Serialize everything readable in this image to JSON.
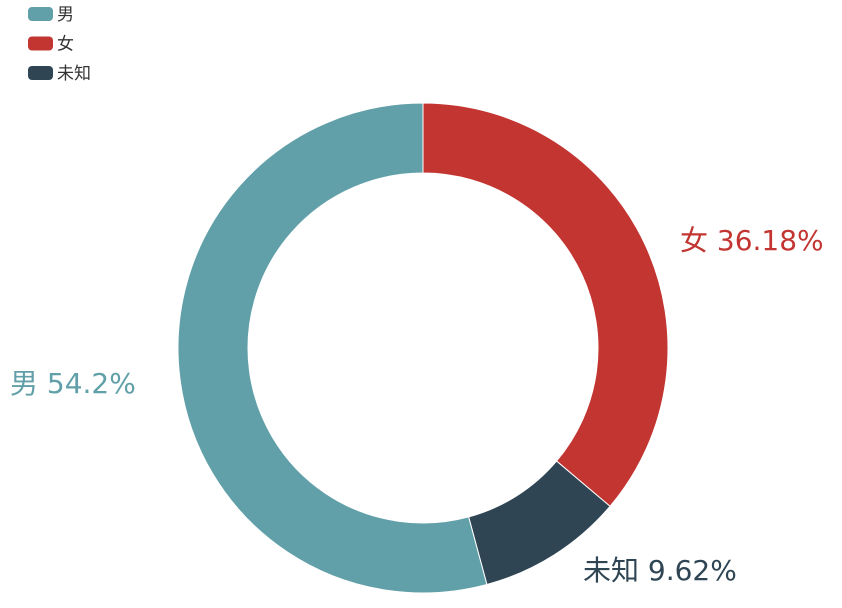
{
  "chart_data": {
    "type": "pie",
    "variant": "donut",
    "legend_position": "top-left",
    "legend": [
      "男",
      "女",
      "未知"
    ],
    "slices": [
      {
        "name": "女",
        "percent": 36.18,
        "label": "女  36.18%",
        "color": "#c23531"
      },
      {
        "name": "未知",
        "percent": 9.62,
        "label": "未知  9.62%",
        "color": "#2f4554"
      },
      {
        "name": "男",
        "percent": 54.2,
        "label": "男  54.2%",
        "color": "#61a0a8"
      }
    ]
  }
}
